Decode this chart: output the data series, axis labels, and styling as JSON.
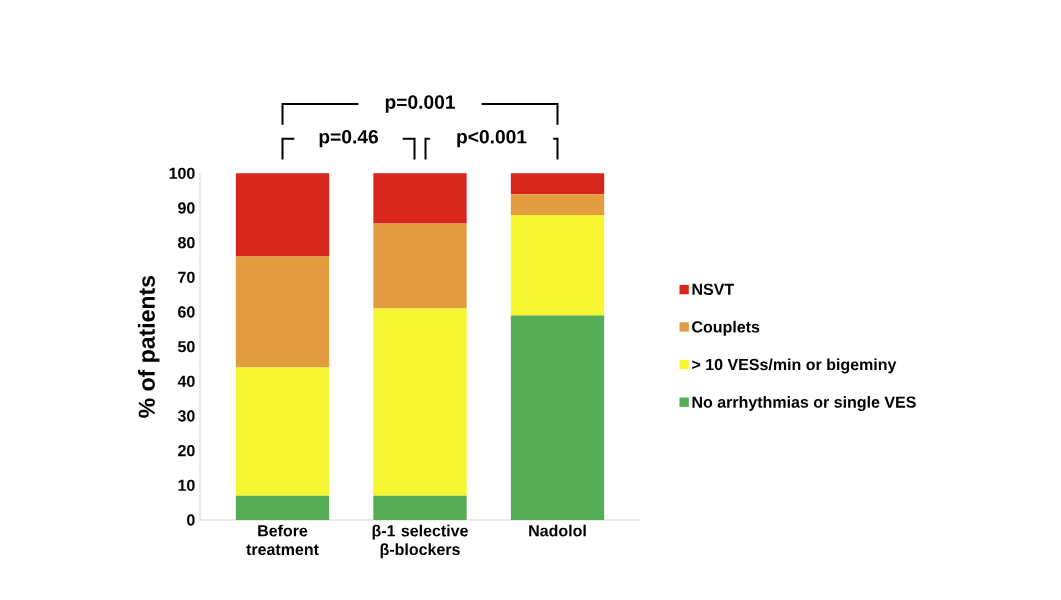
{
  "chart_data": {
    "type": "bar",
    "stacked": true,
    "ylabel": "% of patients",
    "categories": [
      "Before treatment",
      "β-1 selective β-blockers",
      "Nadolol"
    ],
    "series": [
      {
        "name": "No arrhythmias or single VES",
        "color": "#55ad55",
        "values": [
          7,
          7,
          59
        ]
      },
      {
        "name": "> 10 VESs/min or bigeminy",
        "color": "#f5f531",
        "values": [
          37,
          54,
          29
        ]
      },
      {
        "name": "Couplets",
        "color": "#e39d3e",
        "values": [
          32,
          24.5,
          6
        ]
      },
      {
        "name": "NSVT",
        "color": "#d9261c",
        "values": [
          24,
          14.5,
          6
        ]
      }
    ],
    "ylim": [
      0,
      100
    ],
    "yticks": [
      0,
      10,
      20,
      30,
      40,
      50,
      60,
      70,
      80,
      90,
      100
    ],
    "legend": "right",
    "grid": false,
    "annotations": [
      "p=0.001",
      "p=0.46",
      "p<0.001"
    ]
  }
}
